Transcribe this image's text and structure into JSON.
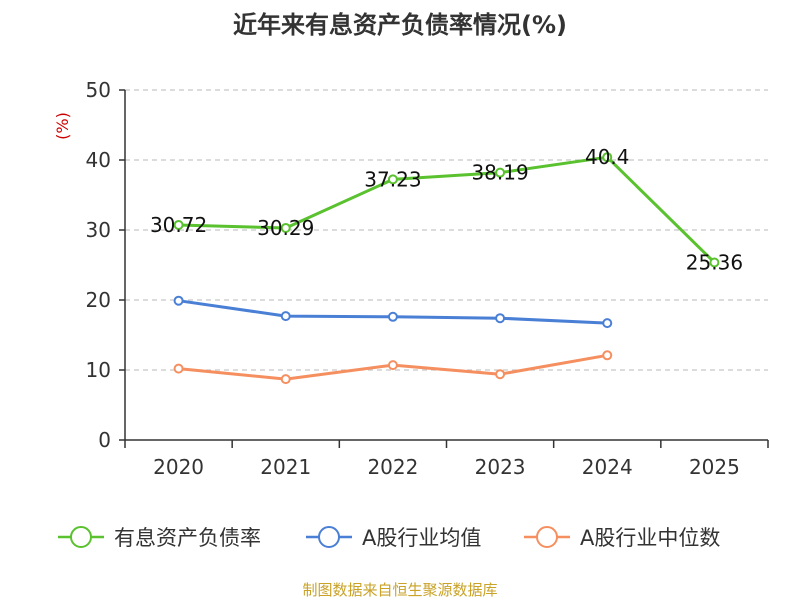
{
  "chart_data": {
    "type": "line",
    "title": "近年来有息资产负债率情况(%)",
    "ylabel": "(%)",
    "xlabel": "",
    "categories": [
      "2020",
      "2021",
      "2022",
      "2023",
      "2024",
      "2025"
    ],
    "yticks": [
      "0",
      "10",
      "20",
      "30",
      "40",
      "50"
    ],
    "ylim": [
      0,
      50
    ],
    "grid": true,
    "legend_position": "bottom",
    "series": [
      {
        "name": "有息资产负债率",
        "color": "#5ac12f",
        "values": [
          30.72,
          30.29,
          37.23,
          38.19,
          40.4,
          25.36
        ],
        "labels": [
          "30.72",
          "30.29",
          "37.23",
          "38.19",
          "40.4",
          "25.36"
        ]
      },
      {
        "name": "A股行业均值",
        "color": "#4a7fd6",
        "values": [
          19.9,
          17.7,
          17.6,
          17.4,
          16.7,
          null
        ]
      },
      {
        "name": "A股行业中位数",
        "color": "#f58f5f",
        "values": [
          10.2,
          8.7,
          10.7,
          9.4,
          12.1,
          null
        ]
      }
    ]
  },
  "source": "制图数据来自恒生聚源数据库"
}
